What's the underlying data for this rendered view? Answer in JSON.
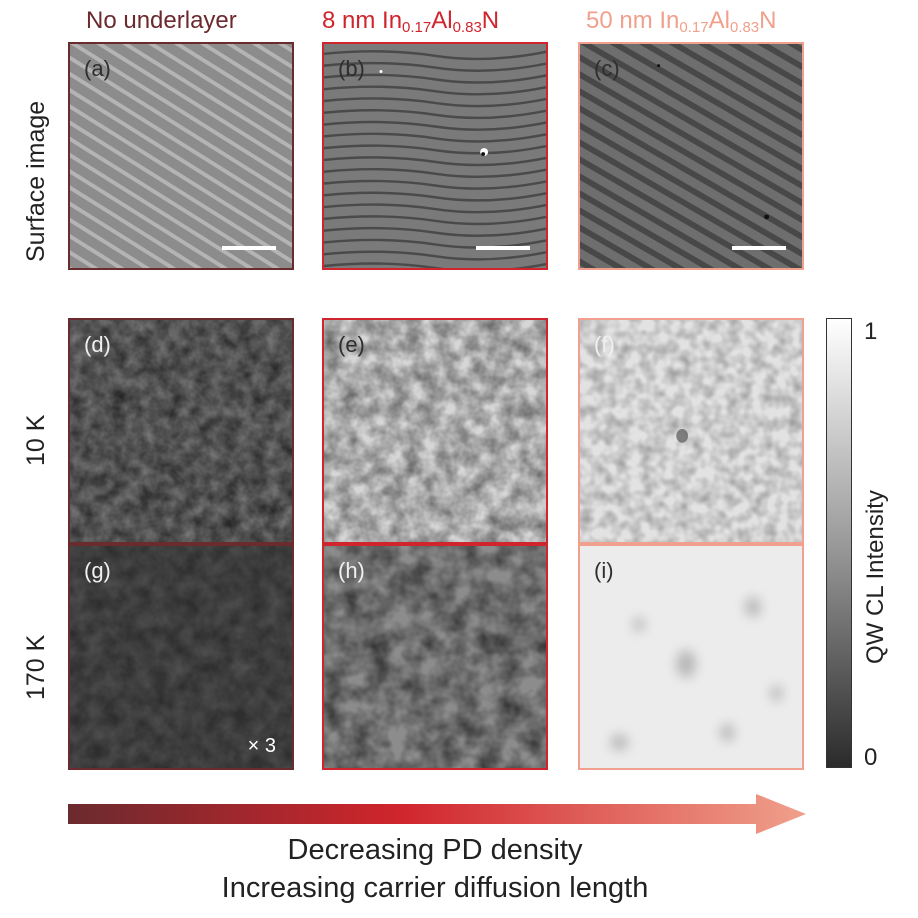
{
  "columns": [
    {
      "title": "No underlayer",
      "color": "#6b2a2e"
    },
    {
      "title_main": "8 nm In",
      "sub1": "0.17",
      "title_mid": "Al",
      "sub2": "0.83",
      "title_end": "N",
      "color": "#d0252c"
    },
    {
      "title_main": "50 nm In",
      "sub1": "0.17",
      "title_mid": "Al",
      "sub2": "0.83",
      "title_end": "N",
      "color": "#f0a08c"
    }
  ],
  "rows": {
    "surface": "Surface image",
    "low_temp": "10 K",
    "high_temp": "170 K"
  },
  "panels": {
    "a": "(a)",
    "b": "(b)",
    "c": "(c)",
    "d": "(d)",
    "e": "(e)",
    "f": "(f)",
    "g": "(g)",
    "h": "(h)",
    "i": "(i)"
  },
  "factor_label": "× 3",
  "colorbar": {
    "title": "QW CL Intensity",
    "max_label": "1",
    "min_label": "0"
  },
  "captions": {
    "line1": "Decreasing PD density",
    "line2": "Increasing carrier diffusion length"
  },
  "gradient_colors": [
    "#6b2a2e",
    "#d0252c",
    "#f0a08c"
  ]
}
